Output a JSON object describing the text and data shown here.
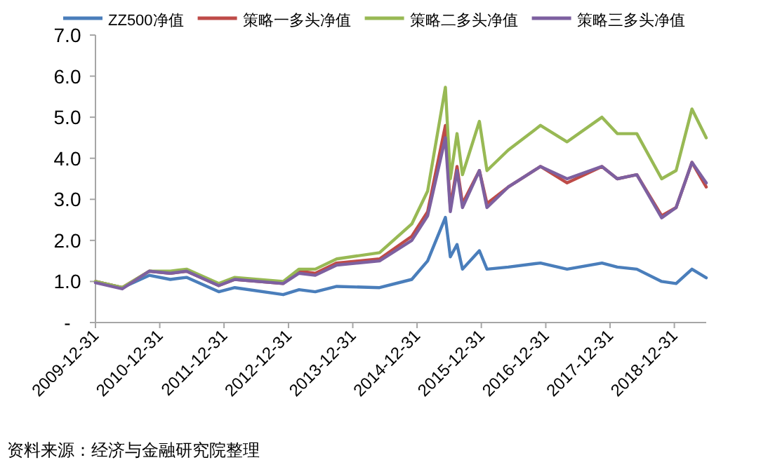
{
  "chart_data": {
    "type": "line",
    "legend": "top",
    "grid": false,
    "marker": "none",
    "line_style": "solid",
    "annotations": [
      "资料来源：经济与金融研究院整理"
    ],
    "xlim": [
      "2009-12-31",
      "2019-06-30"
    ],
    "xticks": [
      "2009-12-31",
      "2010-12-31",
      "2011-12-31",
      "2012-12-31",
      "2013-12-31",
      "2014-12-31",
      "2015-12-31",
      "2016-12-31",
      "2017-12-31",
      "2018-12-31"
    ],
    "ylim": [
      0,
      7
    ],
    "yticks": [
      {
        "value": 0,
        "label": "-"
      },
      {
        "value": 1,
        "label": "1.0"
      },
      {
        "value": 2,
        "label": "2.0"
      },
      {
        "value": 3,
        "label": "3.0"
      },
      {
        "value": 4,
        "label": "4.0"
      },
      {
        "value": 5,
        "label": "5.0"
      },
      {
        "value": 6,
        "label": "6.0"
      },
      {
        "value": 7,
        "label": "7.0"
      }
    ],
    "x": [
      "2009-12-31",
      "2010-06-01",
      "2010-11-01",
      "2011-03-01",
      "2011-06-01",
      "2011-12-01",
      "2012-03-01",
      "2012-12-01",
      "2013-03-01",
      "2013-06-01",
      "2013-10-01",
      "2014-06-01",
      "2014-12-01",
      "2015-03-01",
      "2015-06-10",
      "2015-07-08",
      "2015-08-15",
      "2015-09-15",
      "2015-12-20",
      "2016-02-01",
      "2016-06-01",
      "2016-12-01",
      "2017-05-01",
      "2017-11-15",
      "2018-02-10",
      "2018-06-01",
      "2018-10-20",
      "2019-01-10",
      "2019-04-10",
      "2019-06-30"
    ],
    "series": [
      {
        "name": "ZZ500净值",
        "color": "#4a7ebb",
        "values": [
          1.0,
          0.85,
          1.15,
          1.05,
          1.1,
          0.75,
          0.85,
          0.68,
          0.8,
          0.75,
          0.88,
          0.85,
          1.05,
          1.5,
          2.56,
          1.6,
          1.9,
          1.3,
          1.75,
          1.3,
          1.35,
          1.45,
          1.3,
          1.45,
          1.35,
          1.3,
          1.0,
          0.95,
          1.3,
          1.09
        ]
      },
      {
        "name": "策略一多头净值",
        "color": "#be4b48",
        "values": [
          1.0,
          0.85,
          1.25,
          1.2,
          1.25,
          0.9,
          1.05,
          0.95,
          1.25,
          1.2,
          1.45,
          1.55,
          2.1,
          2.7,
          4.8,
          2.8,
          3.8,
          2.9,
          3.7,
          2.9,
          3.3,
          3.8,
          3.4,
          3.8,
          3.5,
          3.6,
          2.6,
          2.8,
          3.9,
          3.3
        ]
      },
      {
        "name": "策略二多头净值",
        "color": "#98b954",
        "values": [
          1.0,
          0.85,
          1.25,
          1.25,
          1.3,
          0.95,
          1.1,
          1.0,
          1.3,
          1.3,
          1.55,
          1.7,
          2.4,
          3.2,
          5.73,
          3.5,
          4.6,
          3.6,
          4.9,
          3.7,
          4.2,
          4.8,
          4.4,
          5.0,
          4.6,
          4.6,
          3.5,
          3.7,
          5.2,
          4.5
        ]
      },
      {
        "name": "策略三多头净值",
        "color": "#7d60a0",
        "values": [
          0.97,
          0.82,
          1.25,
          1.2,
          1.25,
          0.9,
          1.05,
          0.95,
          1.2,
          1.15,
          1.4,
          1.5,
          2.0,
          2.6,
          4.5,
          2.7,
          3.7,
          2.8,
          3.7,
          2.8,
          3.3,
          3.8,
          3.5,
          3.8,
          3.5,
          3.6,
          2.55,
          2.8,
          3.9,
          3.4
        ]
      }
    ]
  }
}
